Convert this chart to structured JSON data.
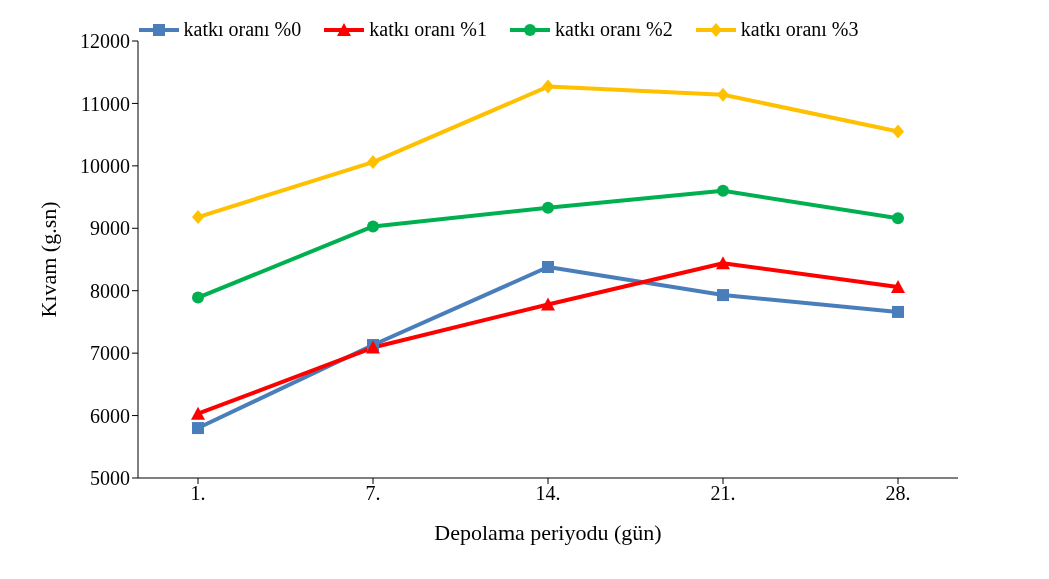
{
  "chart_data": {
    "type": "line",
    "xlabel": "Depolama periyodu (gün)",
    "ylabel": "Kıvam (g.sn)",
    "categories": [
      "1.",
      "7.",
      "14.",
      "21.",
      "28."
    ],
    "series": [
      {
        "name": "katkı oranı %0",
        "color": "#4a7ebb",
        "marker": "square",
        "values": [
          5800,
          7130,
          8380,
          7930,
          7660
        ]
      },
      {
        "name": "katkı oranı %1",
        "color": "#ff0000",
        "marker": "triangle",
        "values": [
          6030,
          7090,
          7780,
          8440,
          8060
        ]
      },
      {
        "name": "katkı oranı %2",
        "color": "#00b050",
        "marker": "circle",
        "values": [
          7890,
          9030,
          9330,
          9600,
          9160
        ]
      },
      {
        "name": "katkı oranı %3",
        "color": "#ffc000",
        "marker": "diamond",
        "values": [
          9180,
          10060,
          11270,
          11140,
          10550
        ]
      }
    ],
    "ylim": [
      5000,
      12000
    ],
    "yticks": [
      5000,
      6000,
      7000,
      8000,
      9000,
      10000,
      11000,
      12000
    ],
    "grid": false,
    "legend": "top"
  }
}
